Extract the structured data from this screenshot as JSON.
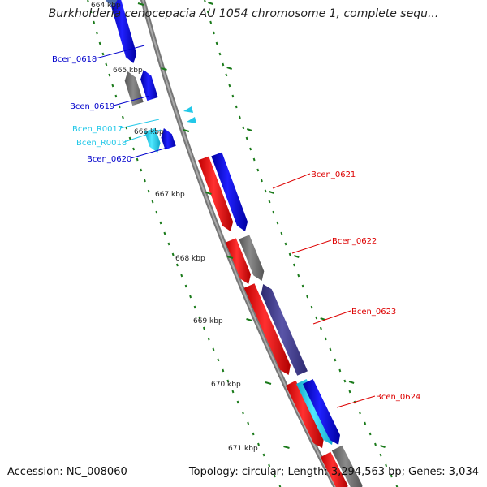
{
  "title": "Burkholderia cenocepacia AU 1054 chromosome 1, complete sequ...",
  "accession": "Accession: NC_008060",
  "summary": "Topology: circular; Length: 3,294,563 bp; Genes: 3,034",
  "colors": {
    "backbone": "#888888",
    "tick": "#1a7a1a",
    "red": "#ff0000",
    "blue": "#0000ee",
    "gray": "#777777",
    "slate": "#4a4590",
    "cyan": "#22c8e8"
  },
  "scale_ticks": [
    {
      "label": "664 kbp"
    },
    {
      "label": "665 kbp"
    },
    {
      "label": "666 kbp"
    },
    {
      "label": "667 kbp"
    },
    {
      "label": "668 kbp"
    },
    {
      "label": "669 kbp"
    },
    {
      "label": "670 kbp"
    },
    {
      "label": "671 kbp"
    }
  ],
  "gene_labels": [
    {
      "text": "Bcen_0618",
      "color": "#0000cc"
    },
    {
      "text": "Bcen_0619",
      "color": "#0000cc"
    },
    {
      "text": "Bcen_R0017",
      "color": "#22c8e8"
    },
    {
      "text": "Bcen_R0018",
      "color": "#22c8e8"
    },
    {
      "text": "Bcen_0620",
      "color": "#0000cc"
    },
    {
      "text": "Bcen_0621",
      "color": "#dd0000"
    },
    {
      "text": "Bcen_0622",
      "color": "#dd0000"
    },
    {
      "text": "Bcen_0623",
      "color": "#dd0000"
    },
    {
      "text": "Bcen_0624",
      "color": "#dd0000"
    }
  ]
}
